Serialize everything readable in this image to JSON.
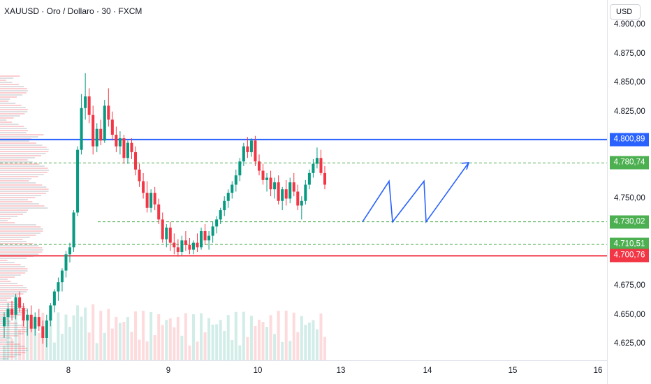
{
  "title": "XAUUSD · Oro / Dollaro · 30 · FXCM",
  "currency": "USD",
  "price_ticks": [
    "4.900,00",
    "4.875,00",
    "4.850,00",
    "4.825,00",
    "4.750,00",
    "4.675,00",
    "4.650,00",
    "4.625,00"
  ],
  "time_ticks": [
    "8",
    "9",
    "10",
    "13",
    "14",
    "15",
    "16"
  ],
  "colors": {
    "up": "#089981",
    "down": "#f23645",
    "blue": "#2962ff",
    "green": "#4caf50",
    "red": "#f23645"
  },
  "chart_data": {
    "type": "candlestick",
    "title": "XAUUSD · Oro / Dollaro · 30 · FXCM",
    "ylim": [
      4610,
      4910
    ],
    "x_ticks": [
      "8",
      "9",
      "10",
      "13",
      "14",
      "15",
      "16"
    ],
    "horizontal_levels": [
      {
        "value": 4800.89,
        "label": "4.800,89",
        "color": "#2962ff",
        "style": "solid"
      },
      {
        "value": 4780.74,
        "label": "4.780,74",
        "color": "#4caf50",
        "style": "dashed"
      },
      {
        "value": 4730.02,
        "label": "4.730,02",
        "color": "#4caf50",
        "style": "dashed"
      },
      {
        "value": 4710.51,
        "label": "4.710,51",
        "color": "#4caf50",
        "style": "dashed"
      },
      {
        "value": 4700.76,
        "label": "4.700,76",
        "color": "#f23645",
        "style": "solid"
      }
    ],
    "candles": [
      [
        4640,
        4652,
        4630,
        4648
      ],
      [
        4648,
        4660,
        4640,
        4655
      ],
      [
        4655,
        4662,
        4645,
        4650
      ],
      [
        4650,
        4668,
        4646,
        4665
      ],
      [
        4665,
        4670,
        4652,
        4656
      ],
      [
        4656,
        4660,
        4640,
        4645
      ],
      [
        4645,
        4655,
        4632,
        4650
      ],
      [
        4650,
        4658,
        4635,
        4638
      ],
      [
        4638,
        4652,
        4632,
        4648
      ],
      [
        4648,
        4655,
        4636,
        4640
      ],
      [
        4640,
        4645,
        4625,
        4630
      ],
      [
        4630,
        4650,
        4622,
        4645
      ],
      [
        4645,
        4660,
        4640,
        4658
      ],
      [
        4658,
        4672,
        4652,
        4670
      ],
      [
        4670,
        4682,
        4662,
        4678
      ],
      [
        4678,
        4690,
        4670,
        4688
      ],
      [
        4688,
        4705,
        4682,
        4702
      ],
      [
        4702,
        4712,
        4695,
        4708
      ],
      [
        4708,
        4740,
        4704,
        4738
      ],
      [
        4738,
        4795,
        4735,
        4792
      ],
      [
        4792,
        4840,
        4788,
        4828
      ],
      [
        4828,
        4858,
        4818,
        4838
      ],
      [
        4838,
        4845,
        4815,
        4822
      ],
      [
        4822,
        4830,
        4788,
        4795
      ],
      [
        4795,
        4815,
        4790,
        4810
      ],
      [
        4810,
        4818,
        4796,
        4800
      ],
      [
        4800,
        4835,
        4798,
        4830
      ],
      [
        4830,
        4845,
        4812,
        4818
      ],
      [
        4818,
        4825,
        4800,
        4805
      ],
      [
        4805,
        4812,
        4790,
        4795
      ],
      [
        4795,
        4808,
        4788,
        4802
      ],
      [
        4802,
        4805,
        4780,
        4785
      ],
      [
        4785,
        4800,
        4780,
        4798
      ],
      [
        4798,
        4802,
        4784,
        4790
      ],
      [
        4790,
        4795,
        4770,
        4775
      ],
      [
        4775,
        4780,
        4760,
        4765
      ],
      [
        4765,
        4772,
        4750,
        4755
      ],
      [
        4755,
        4765,
        4738,
        4742
      ],
      [
        4742,
        4758,
        4738,
        4755
      ],
      [
        4755,
        4760,
        4740,
        4745
      ],
      [
        4745,
        4750,
        4728,
        4732
      ],
      [
        4732,
        4738,
        4712,
        4715
      ],
      [
        4715,
        4728,
        4708,
        4725
      ],
      [
        4725,
        4730,
        4705,
        4712
      ],
      [
        4712,
        4720,
        4702,
        4708
      ],
      [
        4708,
        4715,
        4700,
        4704
      ],
      [
        4704,
        4718,
        4701,
        4714
      ],
      [
        4714,
        4722,
        4705,
        4710
      ],
      [
        4710,
        4716,
        4702,
        4706
      ],
      [
        4706,
        4714,
        4702,
        4712
      ],
      [
        4712,
        4720,
        4704,
        4708
      ],
      [
        4708,
        4725,
        4706,
        4722
      ],
      [
        4722,
        4728,
        4710,
        4714
      ],
      [
        4714,
        4722,
        4706,
        4718
      ],
      [
        4718,
        4730,
        4712,
        4726
      ],
      [
        4726,
        4735,
        4720,
        4732
      ],
      [
        4732,
        4742,
        4728,
        4740
      ],
      [
        4740,
        4752,
        4735,
        4748
      ],
      [
        4748,
        4758,
        4742,
        4755
      ],
      [
        4755,
        4765,
        4750,
        4762
      ],
      [
        4762,
        4775,
        4756,
        4770
      ],
      [
        4770,
        4785,
        4765,
        4782
      ],
      [
        4782,
        4798,
        4778,
        4795
      ],
      [
        4795,
        4803,
        4785,
        4790
      ],
      [
        4790,
        4802,
        4786,
        4800
      ],
      [
        4800,
        4804,
        4778,
        4782
      ],
      [
        4782,
        4788,
        4770,
        4774
      ],
      [
        4774,
        4780,
        4762,
        4766
      ],
      [
        4766,
        4772,
        4756,
        4768
      ],
      [
        4768,
        4774,
        4752,
        4758
      ],
      [
        4758,
        4768,
        4750,
        4764
      ],
      [
        4764,
        4770,
        4745,
        4748
      ],
      [
        4748,
        4760,
        4740,
        4758
      ],
      [
        4758,
        4766,
        4744,
        4750
      ],
      [
        4750,
        4768,
        4746,
        4764
      ],
      [
        4764,
        4772,
        4752,
        4756
      ],
      [
        4756,
        4762,
        4740,
        4744
      ],
      [
        4744,
        4752,
        4732,
        4748
      ],
      [
        4748,
        4766,
        4745,
        4762
      ],
      [
        4762,
        4775,
        4758,
        4772
      ],
      [
        4772,
        4784,
        4768,
        4780
      ],
      [
        4780,
        4794,
        4776,
        4785
      ],
      [
        4785,
        4792,
        4770,
        4772
      ],
      [
        4772,
        4778,
        4758,
        4762
      ]
    ],
    "arrow_path": [
      [
        4730,
        0
      ],
      [
        4765,
        1
      ],
      [
        4730,
        2
      ],
      [
        4765,
        3
      ],
      [
        4730,
        4
      ],
      [
        4780,
        5
      ]
    ]
  }
}
